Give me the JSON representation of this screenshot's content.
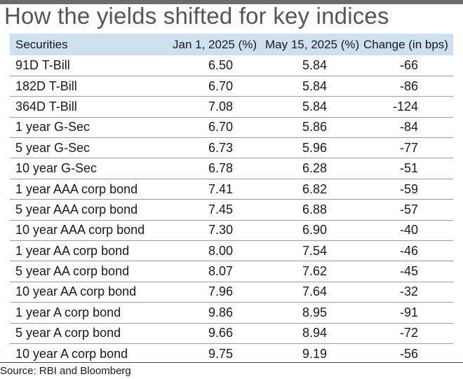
{
  "title": "How the yields shifted for key indices",
  "source": "Source: RBI and Bloomberg",
  "colors": {
    "header_bg": "#cfe0f1",
    "top_bar": "#6b6b6b",
    "title": "#555555"
  },
  "chart_data": {
    "type": "table",
    "title": "How the yields shifted for key indices",
    "columns": [
      "Securities",
      "Jan 1, 2025 (%)",
      "May 15, 2025 (%)",
      "Change (in bps)"
    ],
    "rows": [
      [
        "91D T-Bill",
        "6.50",
        "5.84",
        "-66"
      ],
      [
        "182D T-Bill",
        "6.70",
        "5.84",
        "-86"
      ],
      [
        "364D T-Bill",
        "7.08",
        "5.84",
        "-124"
      ],
      [
        "1 year G-Sec",
        "6.70",
        "5.86",
        "-84"
      ],
      [
        "5 year G-Sec",
        "6.73",
        "5.96",
        "-77"
      ],
      [
        "10 year G-Sec",
        "6.78",
        "6.28",
        "-51"
      ],
      [
        "1 year AAA corp bond",
        "7.41",
        "6.82",
        "-59"
      ],
      [
        "5 year AAA corp bond",
        "7.45",
        "6.88",
        "-57"
      ],
      [
        "10 year AAA corp bond",
        "7.30",
        "6.90",
        "-40"
      ],
      [
        "1 year AA corp bond",
        "8.00",
        "7.54",
        "-46"
      ],
      [
        "5 year AA corp bond",
        "8.07",
        "7.62",
        "-45"
      ],
      [
        "10 year AA corp bond",
        "7.96",
        "7.64",
        "-32"
      ],
      [
        "1 year A corp bond",
        "9.86",
        "8.95",
        "-91"
      ],
      [
        "5 year A corp bond",
        "9.66",
        "8.94",
        "-72"
      ],
      [
        "10 year A corp bond",
        "9.75",
        "9.19",
        "-56"
      ]
    ]
  }
}
